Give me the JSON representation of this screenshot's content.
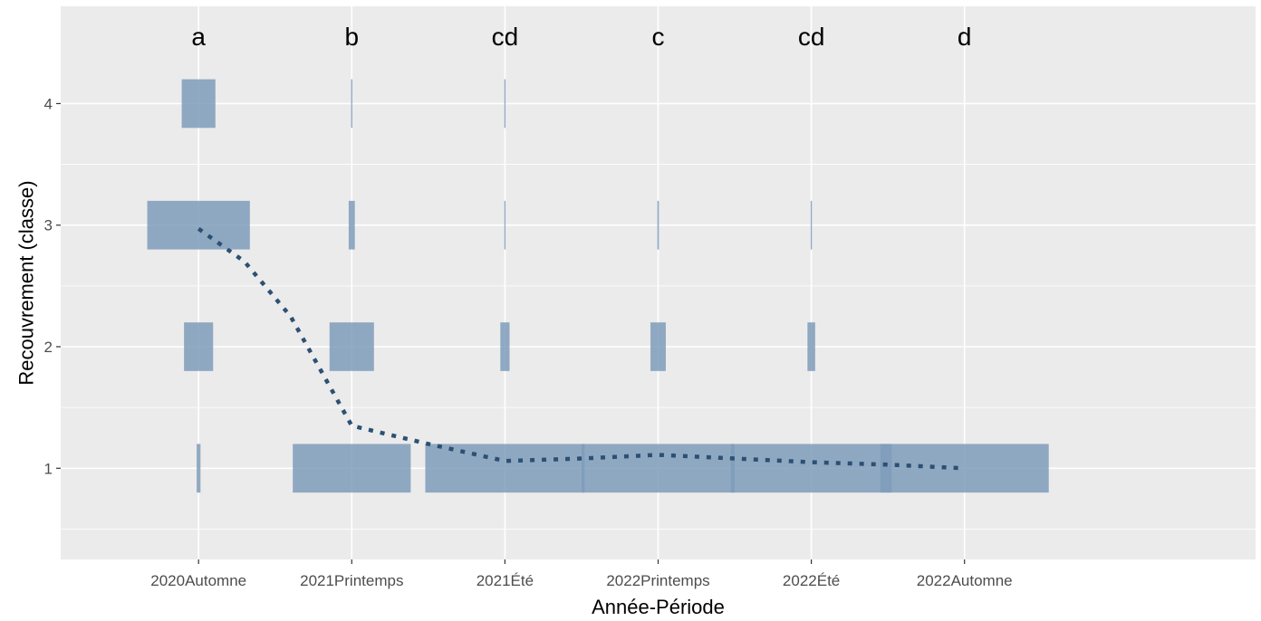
{
  "chart_data": {
    "type": "tile",
    "xlabel": "Année-Période",
    "ylabel": "Recouvrement (classe)",
    "categories": [
      "2020Automne",
      "2021Printemps",
      "2021Été",
      "2022Printemps",
      "2022Été",
      "2022Automne"
    ],
    "y_ticks": [
      1,
      2,
      3,
      4
    ],
    "ylim": [
      0.25,
      4.8
    ],
    "xlim": [
      0.1,
      7.9
    ],
    "grid": true,
    "background": "#ebebeb",
    "gridline_color": "#ffffff",
    "tile_color": "#7f9cbb",
    "line_color": "#2c5073",
    "group_letters": [
      "a",
      "b",
      "cd",
      "c",
      "cd",
      "d"
    ],
    "tile_width_unit": "relative proportion of observations in each class",
    "tiles": [
      {
        "category": "2020Automne",
        "class": 1,
        "width": 0.025
      },
      {
        "category": "2020Automne",
        "class": 2,
        "width": 0.19
      },
      {
        "category": "2020Automne",
        "class": 3,
        "width": 0.67
      },
      {
        "category": "2020Automne",
        "class": 4,
        "width": 0.22
      },
      {
        "category": "2021Printemps",
        "class": 1,
        "width": 0.77
      },
      {
        "category": "2021Printemps",
        "class": 2,
        "width": 0.29
      },
      {
        "category": "2021Printemps",
        "class": 3,
        "width": 0.04
      },
      {
        "category": "2021Printemps",
        "class": 4,
        "width": 0.008
      },
      {
        "category": "2021Été",
        "class": 1,
        "width": 1.04
      },
      {
        "category": "2021Été",
        "class": 2,
        "width": 0.06
      },
      {
        "category": "2021Été",
        "class": 3,
        "width": 0.008
      },
      {
        "category": "2021Été",
        "class": 4,
        "width": 0.008
      },
      {
        "category": "2022Printemps",
        "class": 1,
        "width": 1.0
      },
      {
        "category": "2022Printemps",
        "class": 2,
        "width": 0.1
      },
      {
        "category": "2022Printemps",
        "class": 3,
        "width": 0.01
      },
      {
        "category": "2022Été",
        "class": 1,
        "width": 1.05
      },
      {
        "category": "2022Été",
        "class": 2,
        "width": 0.05
      },
      {
        "category": "2022Été",
        "class": 3,
        "width": 0.008
      },
      {
        "category": "2022Automne",
        "class": 1,
        "width": 1.1
      }
    ],
    "mean_line": [
      {
        "x": 1.0,
        "y": 2.97
      },
      {
        "x": 1.3,
        "y": 2.7
      },
      {
        "x": 1.6,
        "y": 2.25
      },
      {
        "x": 2.0,
        "y": 1.35
      },
      {
        "x": 2.5,
        "y": 1.2
      },
      {
        "x": 3.0,
        "y": 1.06
      },
      {
        "x": 3.5,
        "y": 1.08
      },
      {
        "x": 4.0,
        "y": 1.11
      },
      {
        "x": 4.5,
        "y": 1.08
      },
      {
        "x": 5.0,
        "y": 1.05
      },
      {
        "x": 5.5,
        "y": 1.03
      },
      {
        "x": 6.0,
        "y": 1.0
      }
    ]
  }
}
